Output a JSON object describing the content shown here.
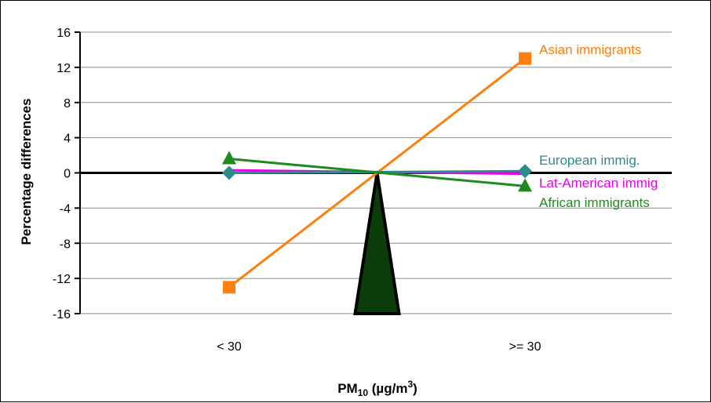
{
  "chart_data": {
    "type": "line",
    "title": "",
    "xlabel": {
      "prefix": "PM",
      "sub": "10",
      "units": " (µg/m",
      "sup": "3",
      "close": ")"
    },
    "ylabel": "Percentage differences",
    "categories": [
      "< 30",
      ">= 30"
    ],
    "ylim": [
      -16,
      16
    ],
    "yticks": [
      16,
      12,
      8,
      4,
      0,
      -4,
      -8,
      -12,
      -16
    ],
    "grid": true,
    "legend": "inline labels at line ends",
    "series": [
      {
        "name": "Asian immigrants",
        "values": [
          -13,
          13
        ],
        "color": "#ff7f0e",
        "marker": "square"
      },
      {
        "name": "European immig.",
        "values": [
          0,
          0.2
        ],
        "color": "#2e8b8b",
        "marker": "diamond"
      },
      {
        "name": "Lat-American immig",
        "values": [
          0.3,
          -0.1
        ],
        "color": "#e800e8",
        "marker": "none"
      },
      {
        "name": "African immigrants",
        "values": [
          1.6,
          -1.5
        ],
        "color": "#1f8a1f",
        "marker": "triangle"
      }
    ],
    "pivot": {
      "color": "#0b3d0b",
      "outline": "#000000"
    }
  }
}
